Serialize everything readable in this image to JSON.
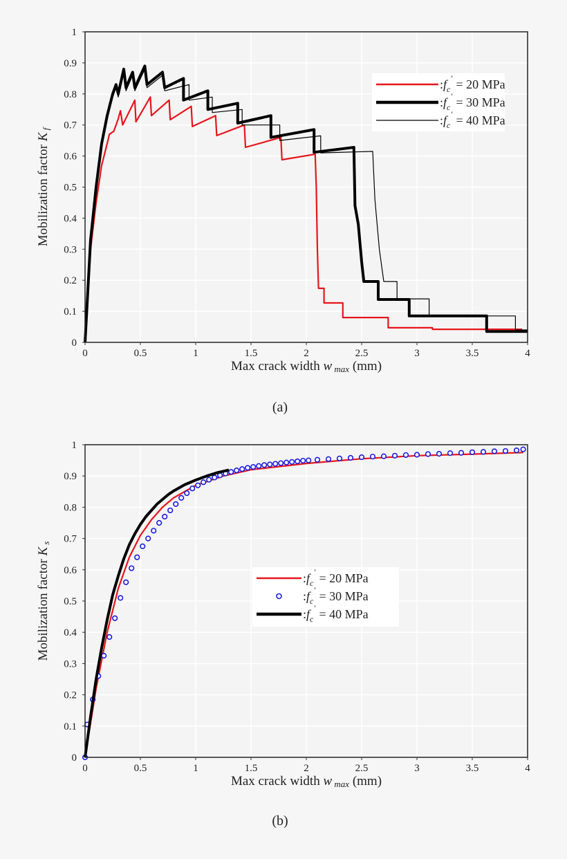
{
  "chart_data": [
    {
      "type": "line",
      "caption": "(a)",
      "xlabel": "Max crack width",
      "xlabel_symbol": "w",
      "xlabel_sub": "max",
      "xlabel_unit": "(mm)",
      "ylabel": "Mobilization factor",
      "ylabel_symbol": "K",
      "ylabel_sub": "f",
      "xlim": [
        0,
        4
      ],
      "ylim": [
        0,
        1
      ],
      "xticks": [
        "0",
        "0.5",
        "1",
        "1.5",
        "2",
        "2.5",
        "3",
        "3.5",
        "4"
      ],
      "yticks": [
        "0",
        "0.1",
        "0.2",
        "0.3",
        "0.4",
        "0.5",
        "0.6",
        "0.7",
        "0.8",
        "0.9",
        "1"
      ],
      "grid": true,
      "legend_position": "top-right",
      "series": [
        {
          "legend": {
            "prefix": ":",
            "var": "f",
            "sub": "c",
            "sup": "′",
            "rest": "= 20 MPa"
          },
          "color": "#e8141b",
          "style": "thin-line",
          "x": [
            0,
            0.05,
            0.1,
            0.15,
            0.2,
            0.22,
            0.26,
            0.3,
            0.32,
            0.34,
            0.45,
            0.46,
            0.59,
            0.6,
            0.76,
            0.77,
            0.96,
            0.97,
            1.18,
            1.19,
            1.44,
            1.45,
            1.77,
            1.78,
            2.08,
            2.09,
            2.1,
            2.11,
            2.16,
            2.16,
            2.33,
            2.33,
            2.74,
            2.74,
            3.14,
            3.14,
            3.95
          ],
          "y": [
            0,
            0.3,
            0.45,
            0.57,
            0.64,
            0.67,
            0.68,
            0.72,
            0.746,
            0.7,
            0.78,
            0.71,
            0.79,
            0.73,
            0.78,
            0.717,
            0.76,
            0.695,
            0.73,
            0.666,
            0.7,
            0.628,
            0.66,
            0.588,
            0.606,
            0.5,
            0.3,
            0.174,
            0.174,
            0.127,
            0.127,
            0.08,
            0.08,
            0.047,
            0.047,
            0.042,
            0.042
          ]
        },
        {
          "legend": {
            "prefix": ":",
            "var": "f",
            "sub": "c",
            "sup": "′",
            "rest": "= 30 MPa"
          },
          "color": "#000000",
          "style": "thick-line",
          "x": [
            0,
            0.05,
            0.1,
            0.15,
            0.2,
            0.25,
            0.28,
            0.3,
            0.35,
            0.37,
            0.43,
            0.45,
            0.54,
            0.56,
            0.7,
            0.72,
            0.89,
            0.89,
            1.11,
            1.11,
            1.38,
            1.38,
            1.68,
            1.68,
            2.07,
            2.07,
            2.43,
            2.44,
            2.47,
            2.5,
            2.52,
            2.65,
            2.65,
            2.93,
            2.93,
            3.63,
            3.63,
            4.0
          ],
          "y": [
            0,
            0.33,
            0.5,
            0.64,
            0.73,
            0.8,
            0.83,
            0.8,
            0.88,
            0.82,
            0.87,
            0.82,
            0.89,
            0.83,
            0.87,
            0.82,
            0.85,
            0.78,
            0.81,
            0.75,
            0.77,
            0.706,
            0.73,
            0.66,
            0.685,
            0.612,
            0.628,
            0.44,
            0.38,
            0.26,
            0.196,
            0.196,
            0.138,
            0.138,
            0.085,
            0.085,
            0.035,
            0.035
          ]
        },
        {
          "legend": {
            "prefix": ":",
            "var": "f",
            "sub": "c",
            "sup": "′",
            "rest": "= 40 MPa"
          },
          "color": "#000000",
          "style": "thin-line",
          "x": [
            0,
            0.05,
            0.1,
            0.15,
            0.2,
            0.25,
            0.28,
            0.3,
            0.35,
            0.37,
            0.43,
            0.45,
            0.54,
            0.56,
            0.7,
            0.72,
            0.94,
            0.94,
            1.15,
            1.15,
            1.42,
            1.42,
            1.76,
            1.76,
            2.13,
            2.13,
            2.6,
            2.62,
            2.66,
            2.7,
            2.82,
            2.82,
            3.11,
            3.11,
            3.89,
            3.89,
            4.0
          ],
          "y": [
            0,
            0.33,
            0.5,
            0.64,
            0.73,
            0.79,
            0.82,
            0.79,
            0.87,
            0.81,
            0.86,
            0.81,
            0.88,
            0.82,
            0.86,
            0.81,
            0.83,
            0.78,
            0.79,
            0.74,
            0.75,
            0.7,
            0.7,
            0.65,
            0.665,
            0.61,
            0.615,
            0.46,
            0.3,
            0.196,
            0.196,
            0.14,
            0.14,
            0.085,
            0.085,
            0.04,
            0.04
          ]
        }
      ]
    },
    {
      "type": "line",
      "caption": "(b)",
      "xlabel": "Max crack width",
      "xlabel_symbol": "w",
      "xlabel_sub": "max",
      "xlabel_unit": "(mm)",
      "ylabel": "Mobilization factor",
      "ylabel_symbol": "K",
      "ylabel_sub": "s",
      "xlim": [
        0,
        4
      ],
      "ylim": [
        0,
        1
      ],
      "xticks": [
        "0",
        "0.5",
        "1",
        "1.5",
        "2",
        "2.5",
        "3",
        "3.5",
        "4"
      ],
      "yticks": [
        "0",
        "0.1",
        "0.2",
        "0.3",
        "0.4",
        "0.5",
        "0.6",
        "0.7",
        "0.8",
        "0.9",
        "1"
      ],
      "grid": true,
      "legend_position": "center",
      "series": [
        {
          "legend": {
            "prefix": ":",
            "var": "f",
            "sub": "c",
            "sup": "′",
            "rest": "= 20 MPa"
          },
          "color": "#e8141b",
          "style": "line",
          "x": [
            0,
            0.1,
            0.2,
            0.3,
            0.4,
            0.5,
            0.6,
            0.7,
            0.8,
            1.0,
            1.25,
            1.5,
            2.0,
            2.5,
            3.0,
            3.5,
            3.96
          ],
          "y": [
            0,
            0.22,
            0.4,
            0.54,
            0.64,
            0.71,
            0.76,
            0.8,
            0.83,
            0.87,
            0.9,
            0.92,
            0.94,
            0.955,
            0.965,
            0.97,
            0.975
          ]
        },
        {
          "legend": {
            "prefix": ":",
            "var": "f",
            "sub": "c",
            "sup": "′",
            "rest": "= 30 MPa"
          },
          "color": "#1a1ae0",
          "style": "circles",
          "x": [
            0,
            0.02,
            0.07,
            0.12,
            0.17,
            0.22,
            0.27,
            0.32,
            0.37,
            0.42,
            0.47,
            0.52,
            0.57,
            0.62,
            0.67,
            0.72,
            0.77,
            0.82,
            0.87,
            0.92,
            0.97,
            1.02,
            1.07,
            1.12,
            1.17,
            1.22,
            1.27,
            1.32,
            1.37,
            1.42,
            1.47,
            1.52,
            1.57,
            1.62,
            1.67,
            1.72,
            1.77,
            1.82,
            1.87,
            1.92,
            1.97,
            2.02,
            2.1,
            2.2,
            2.3,
            2.4,
            2.5,
            2.6,
            2.7,
            2.8,
            2.9,
            3.0,
            3.1,
            3.2,
            3.3,
            3.4,
            3.5,
            3.6,
            3.7,
            3.8,
            3.9,
            3.96
          ],
          "y": [
            0,
            0.105,
            0.185,
            0.26,
            0.325,
            0.385,
            0.445,
            0.51,
            0.56,
            0.605,
            0.64,
            0.675,
            0.7,
            0.725,
            0.75,
            0.77,
            0.79,
            0.81,
            0.83,
            0.845,
            0.86,
            0.87,
            0.88,
            0.888,
            0.895,
            0.902,
            0.908,
            0.913,
            0.918,
            0.922,
            0.926,
            0.929,
            0.932,
            0.935,
            0.937,
            0.939,
            0.941,
            0.943,
            0.945,
            0.947,
            0.949,
            0.95,
            0.952,
            0.954,
            0.956,
            0.958,
            0.96,
            0.962,
            0.963,
            0.965,
            0.967,
            0.968,
            0.97,
            0.971,
            0.973,
            0.974,
            0.976,
            0.977,
            0.979,
            0.98,
            0.982,
            0.985
          ]
        },
        {
          "legend": {
            "prefix": ":",
            "var": "f",
            "sub": "c",
            "sup": "′",
            "rest": "= 40 MPa"
          },
          "color": "#000000",
          "style": "thick-line",
          "x": [
            0,
            0.05,
            0.1,
            0.15,
            0.2,
            0.25,
            0.3,
            0.35,
            0.4,
            0.45,
            0.5,
            0.55,
            0.6,
            0.65,
            0.7,
            0.75,
            0.8,
            0.9,
            1.0,
            1.1,
            1.2,
            1.3
          ],
          "y": [
            0,
            0.13,
            0.25,
            0.35,
            0.44,
            0.52,
            0.58,
            0.635,
            0.68,
            0.715,
            0.745,
            0.77,
            0.79,
            0.81,
            0.825,
            0.84,
            0.852,
            0.872,
            0.887,
            0.9,
            0.911,
            0.919
          ]
        }
      ]
    }
  ]
}
